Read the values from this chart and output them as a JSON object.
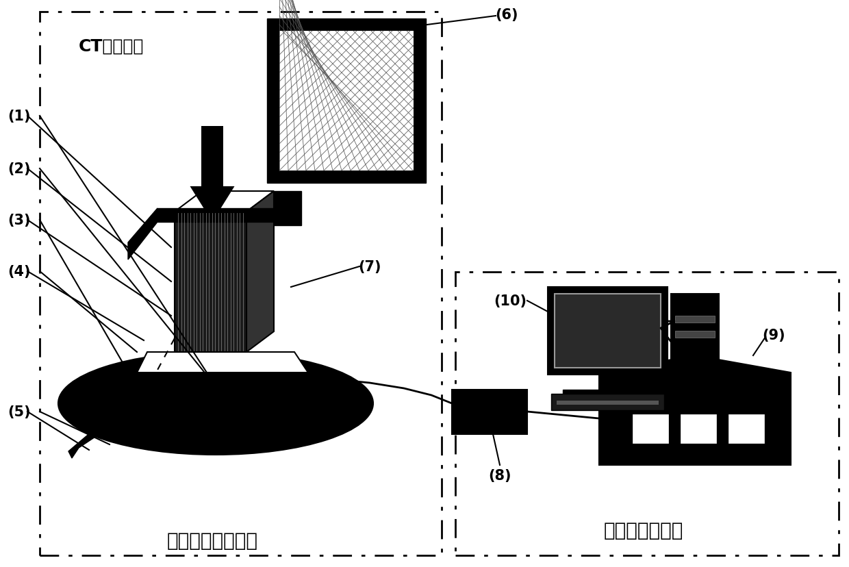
{
  "fig_width": 12.4,
  "fig_height": 8.29,
  "dpi": 100,
  "bg_color": "#ffffff",
  "ct_label": "CT扯描系统",
  "loading_label": "单轴原位加载系统",
  "ae_label": "声发射监测系统",
  "labels": [
    "(1)",
    "(2)",
    "(3)",
    "(4)",
    "(5)",
    "(6)",
    "(7)",
    "(8)",
    "(9)",
    "(10)"
  ],
  "label_fontsize": 15,
  "system_fontsize": 20,
  "ct_label_fontsize": 18
}
